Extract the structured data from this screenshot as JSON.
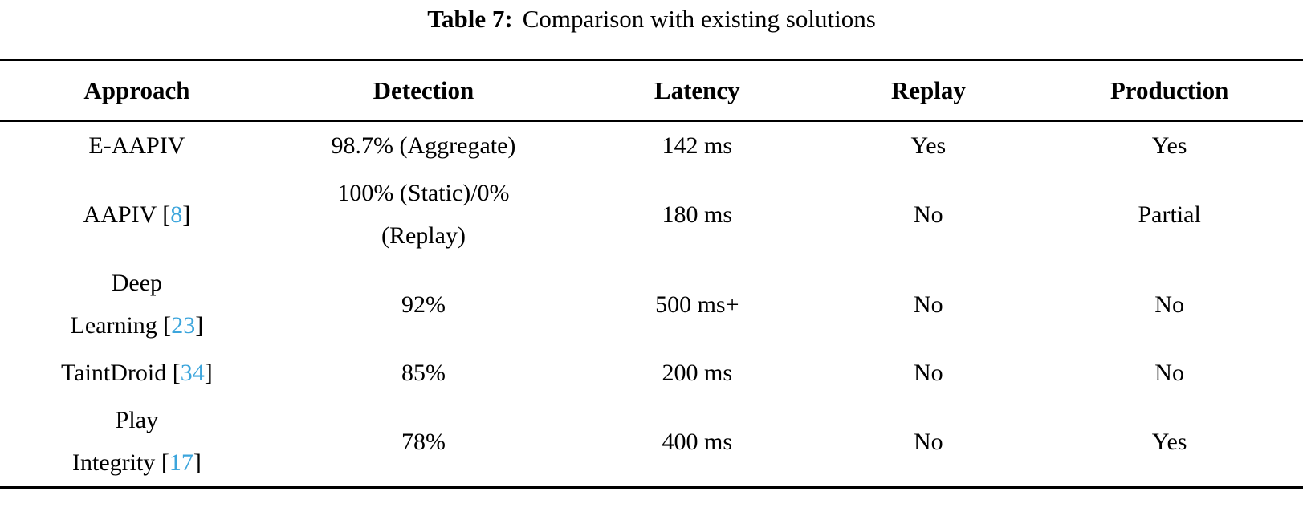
{
  "caption": {
    "label": "Table 7:",
    "text": "Comparison with existing solutions"
  },
  "colors": {
    "citation_link": "#3CA5DC",
    "text": "#000000",
    "background": "#FFFFFF",
    "rule": "#000000"
  },
  "table": {
    "columns": [
      "Approach",
      "Detection",
      "Latency",
      "Replay",
      "Production"
    ],
    "rows": [
      {
        "approach": {
          "name": "E-AAPIV",
          "cite": null
        },
        "detection": "98.7% (Aggregate)",
        "latency": "142 ms",
        "replay": "Yes",
        "production": "Yes"
      },
      {
        "approach": {
          "name": "AAPIV",
          "cite": "8"
        },
        "detection": "100% (Static)/0%\n(Replay)",
        "latency": "180 ms",
        "replay": "No",
        "production": "Partial"
      },
      {
        "approach": {
          "name": "Deep\nLearning",
          "cite": "23"
        },
        "detection": "92%",
        "latency": "500 ms+",
        "replay": "No",
        "production": "No"
      },
      {
        "approach": {
          "name": "TaintDroid",
          "cite": "34"
        },
        "detection": "85%",
        "latency": "200 ms",
        "replay": "No",
        "production": "No"
      },
      {
        "approach": {
          "name": "Play\nIntegrity",
          "cite": "17"
        },
        "detection": "78%",
        "latency": "400 ms",
        "replay": "No",
        "production": "Yes"
      }
    ]
  }
}
